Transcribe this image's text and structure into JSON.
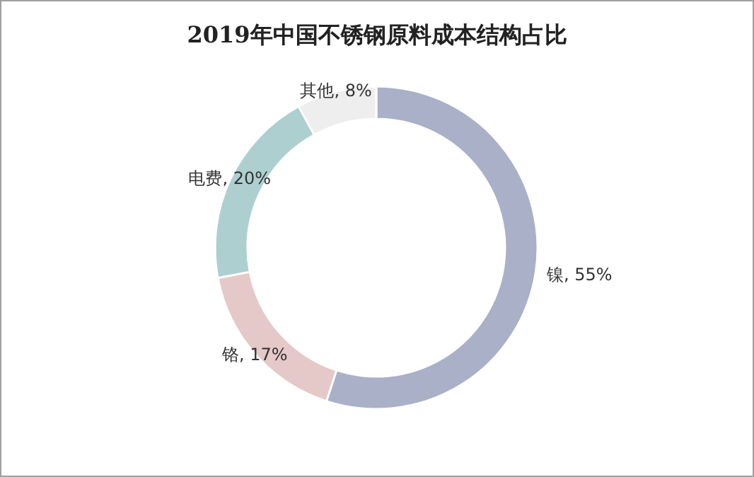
{
  "chart_data": {
    "type": "donut",
    "title": "2019年中国不锈钢原料成本结构占比",
    "categories": [
      "镍",
      "铬",
      "电费",
      "其他"
    ],
    "values": [
      55,
      17,
      20,
      8
    ],
    "value_labels": [
      "55%",
      "17%",
      "20%",
      "8%"
    ],
    "colors": [
      "#a9b0c8",
      "#e5c8c8",
      "#aecfcf",
      "#eeeeee"
    ],
    "legend": false
  }
}
